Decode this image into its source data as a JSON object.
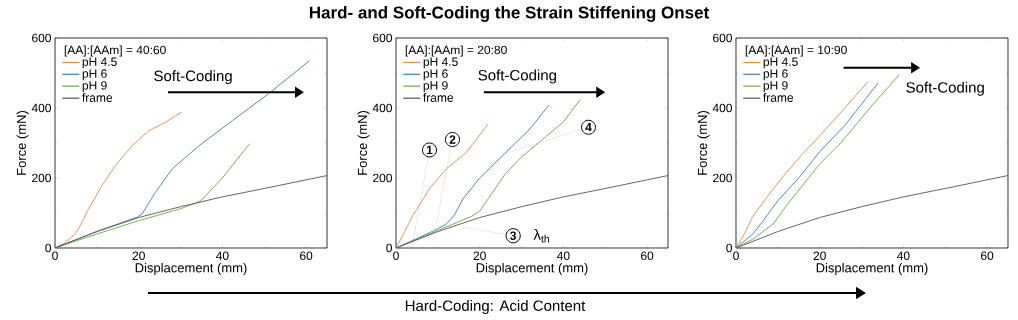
{
  "chart_data": [
    {
      "type": "line",
      "xlabel": "Displacement (mm)",
      "ylabel": "Force (mN)",
      "legend_title": "[AA]:[AAm] = 40:60",
      "legend": "top left",
      "grid": false,
      "marker": "none",
      "line_style": "solid",
      "xlim": [
        0,
        65
      ],
      "ylim": [
        0,
        600
      ],
      "xticks": [
        0,
        20,
        40,
        60
      ],
      "yticks": [
        0,
        200,
        400,
        600
      ],
      "annotations": [
        "Soft-Coding"
      ],
      "series": [
        {
          "name": "pH 4.5",
          "color": "#f0883e",
          "x": [
            0,
            2,
            4.4,
            5.6,
            8,
            11.2,
            14.4,
            18.4,
            22.4,
            26.4,
            30.2
          ],
          "values": [
            0,
            12,
            35,
            54,
            111,
            178,
            235,
            292,
            335,
            359,
            388
          ]
        },
        {
          "name": "pH 6",
          "color": "#3a7fc4",
          "x": [
            0,
            10,
            19.6,
            20.8,
            24,
            28,
            34.4,
            42.4,
            50.4,
            60.8
          ],
          "values": [
            0,
            47,
            88,
            97,
            159,
            226,
            292,
            364,
            435,
            535
          ]
        },
        {
          "name": "pH 9",
          "color": "#6aab3c",
          "x": [
            0,
            10,
            20,
            30,
            34,
            35,
            40,
            46.5
          ],
          "values": [
            0,
            40,
            78,
            112,
            130,
            137,
            200,
            298
          ]
        },
        {
          "name": "frame",
          "color": "#555555",
          "x": [
            0,
            10,
            20,
            30,
            40,
            50,
            65
          ],
          "values": [
            0,
            47,
            87,
            118,
            146,
            170,
            207
          ]
        }
      ]
    },
    {
      "type": "line",
      "title": "Hard- and Soft-Coding the Strain Stiffening Onset",
      "xlabel": "Displacement (mm)",
      "ylabel": "Force (mN)",
      "legend_title": "[AA]:[AAm] = 20:80",
      "legend": "top left",
      "grid": false,
      "marker": "none",
      "line_style": "solid",
      "xlim": [
        0,
        65
      ],
      "ylim": [
        0,
        600
      ],
      "xticks": [
        0,
        20,
        40,
        60
      ],
      "yticks": [
        0,
        200,
        400,
        600
      ],
      "annotations": [
        "Soft-Coding",
        {
          "text": "1",
          "x": 4,
          "y": 15
        },
        {
          "text": "2",
          "x": 9.5,
          "y": 60
        },
        {
          "text": "3",
          "x": 16,
          "y": 60
        },
        {
          "text": "4",
          "x": 26,
          "y": 270
        },
        "λ$_{th}$",
        "Hard-Coding: Acid Content"
      ],
      "series": [
        {
          "name": "pH 4.5",
          "color": "#f0883e",
          "x": [
            0,
            2,
            4,
            8,
            12,
            16.8,
            22
          ],
          "values": [
            0,
            45,
            92,
            169,
            226,
            273,
            354
          ]
        },
        {
          "name": "pH 6",
          "color": "#3a7fc4",
          "x": [
            0,
            5,
            10,
            12,
            14,
            16,
            20,
            26,
            32,
            36.5
          ],
          "values": [
            0,
            27,
            55,
            68,
            95,
            140,
            200,
            270,
            340,
            408
          ]
        },
        {
          "name": "pH 9",
          "color": "#6aab3c",
          "x": [
            0,
            10,
            18,
            20,
            22,
            26,
            30,
            35,
            40,
            44
          ],
          "values": [
            0,
            50,
            90,
            105,
            140,
            210,
            260,
            310,
            360,
            424
          ]
        },
        {
          "name": "frame",
          "color": "#555555",
          "x": [
            0,
            10,
            20,
            30,
            40,
            50,
            65
          ],
          "values": [
            0,
            47,
            87,
            118,
            146,
            170,
            207
          ]
        }
      ]
    },
    {
      "type": "line",
      "xlabel": "Displacement (mm)",
      "ylabel": "Force (mN)",
      "legend_title": "[AA]:[AAm] = 10:90",
      "legend": "top left",
      "grid": false,
      "marker": "none",
      "line_style": "solid",
      "xlim": [
        0,
        65
      ],
      "ylim": [
        0,
        600
      ],
      "xticks": [
        0,
        20,
        40,
        60
      ],
      "yticks": [
        0,
        200,
        400,
        600
      ],
      "annotations": [
        "Soft-Coding"
      ],
      "series": [
        {
          "name": "pH 4.5",
          "color": "#f0883e",
          "x": [
            0,
            2,
            4,
            8,
            12,
            16,
            20,
            26,
            31.5
          ],
          "values": [
            0,
            40,
            90,
            155,
            215,
            270,
            320,
            400,
            475
          ]
        },
        {
          "name": "pH 6",
          "color": "#3a7fc4",
          "x": [
            0,
            4,
            6,
            10,
            15,
            20,
            26,
            34
          ],
          "values": [
            0,
            40,
            70,
            135,
            200,
            275,
            350,
            472
          ]
        },
        {
          "name": "pH 9",
          "color": "#6aab3c",
          "x": [
            0,
            4,
            9,
            12,
            16,
            20,
            25,
            32,
            39
          ],
          "values": [
            0,
            25,
            70,
            120,
            180,
            240,
            300,
            400,
            495
          ]
        },
        {
          "name": "frame",
          "color": "#555555",
          "x": [
            0,
            10,
            20,
            30,
            40,
            50,
            65
          ],
          "values": [
            0,
            47,
            87,
            118,
            146,
            170,
            207
          ]
        }
      ]
    }
  ]
}
